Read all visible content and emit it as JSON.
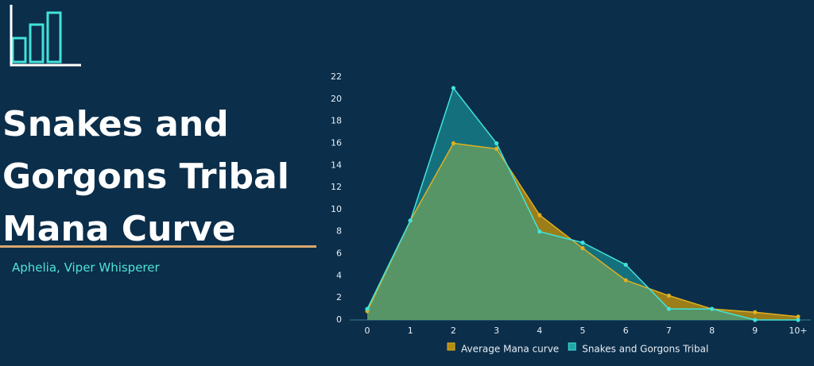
{
  "header": {
    "title": "Snakes and Gorgons Tribal Mana Curve",
    "subtitle": "Aphelia, Viper Whisperer"
  },
  "chart_data": {
    "type": "area",
    "categories": [
      "0",
      "1",
      "2",
      "3",
      "4",
      "5",
      "6",
      "7",
      "8",
      "9",
      "10+"
    ],
    "series": [
      {
        "name": "Average Mana curve",
        "color": "#b58c12",
        "line_color": "#e0b020",
        "values": [
          0.8,
          9,
          16,
          15.5,
          9.5,
          6.5,
          3.6,
          2.2,
          1,
          0.7,
          0.3
        ]
      },
      {
        "name": "Snakes and Gorgons Tribal",
        "color": "#1fa8a8",
        "line_color": "#40e3d9",
        "values": [
          1,
          9,
          21,
          16,
          8,
          7,
          5,
          1,
          1,
          0,
          0
        ]
      }
    ],
    "ylim": [
      0,
      22
    ],
    "yticks": [
      0,
      2,
      4,
      6,
      8,
      10,
      12,
      14,
      16,
      18,
      20,
      22
    ]
  }
}
